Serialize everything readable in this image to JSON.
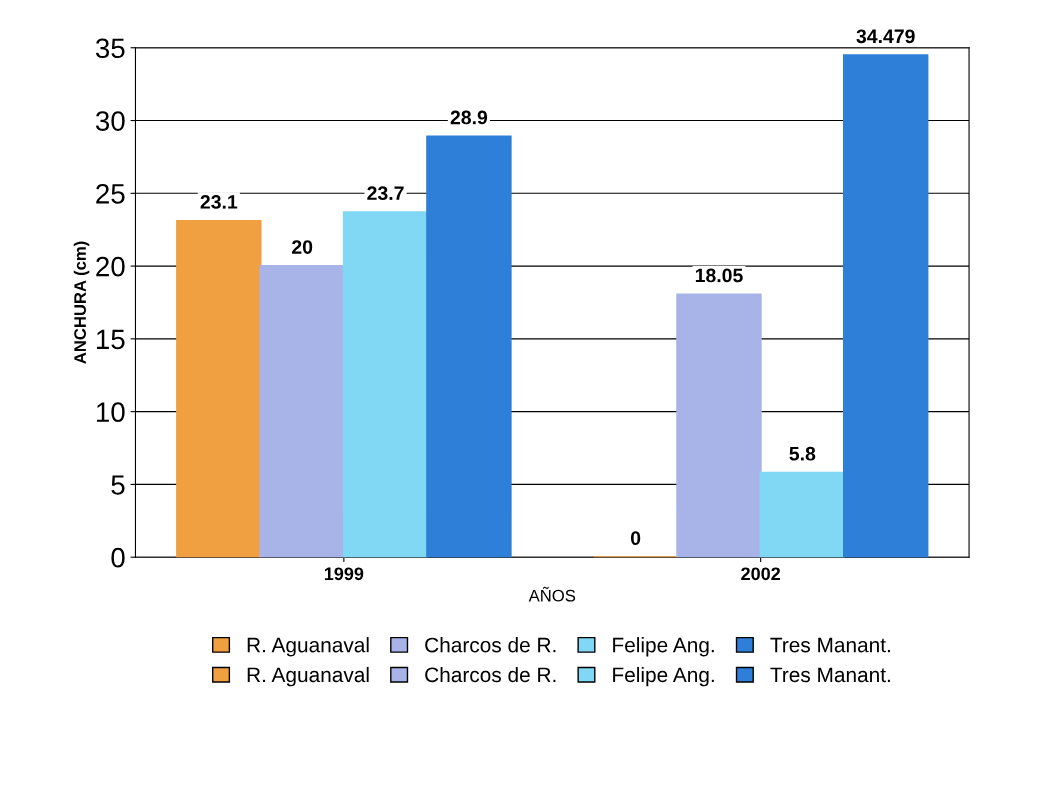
{
  "chart_data": {
    "type": "bar",
    "xlabel": "AÑOS",
    "ylabel": "ANCHURA (cm)",
    "categories": [
      "1999",
      "2002"
    ],
    "series": [
      {
        "name": "R. Aguanaval",
        "color": "#f0a040",
        "values": [
          23.1,
          null
        ]
      },
      {
        "name": "Charcos de R.",
        "color": "#a8b4e8",
        "values": [
          20,
          null
        ]
      },
      {
        "name": "Felipe Ang.",
        "color": "#80d8f4",
        "values": [
          23.7,
          null
        ]
      },
      {
        "name": "Tres Manant.",
        "color": "#2e7fd8",
        "values": [
          28.9,
          null
        ]
      },
      {
        "name": "R. Aguanaval",
        "color": "#f0a040",
        "values": [
          null,
          0
        ]
      },
      {
        "name": "Charcos de R.",
        "color": "#a8b4e8",
        "values": [
          null,
          18.05
        ]
      },
      {
        "name": "Felipe Ang.",
        "color": "#80d8f4",
        "values": [
          null,
          5.8
        ]
      },
      {
        "name": "Tres Manant.",
        "color": "#2e7fd8",
        "values": [
          null,
          34.479
        ]
      }
    ],
    "ylim": [
      0,
      35
    ],
    "yticks": [
      0,
      5,
      10,
      15,
      20,
      25,
      30,
      35
    ],
    "grid": "y",
    "legend": "bottom",
    "data_labels": true
  }
}
